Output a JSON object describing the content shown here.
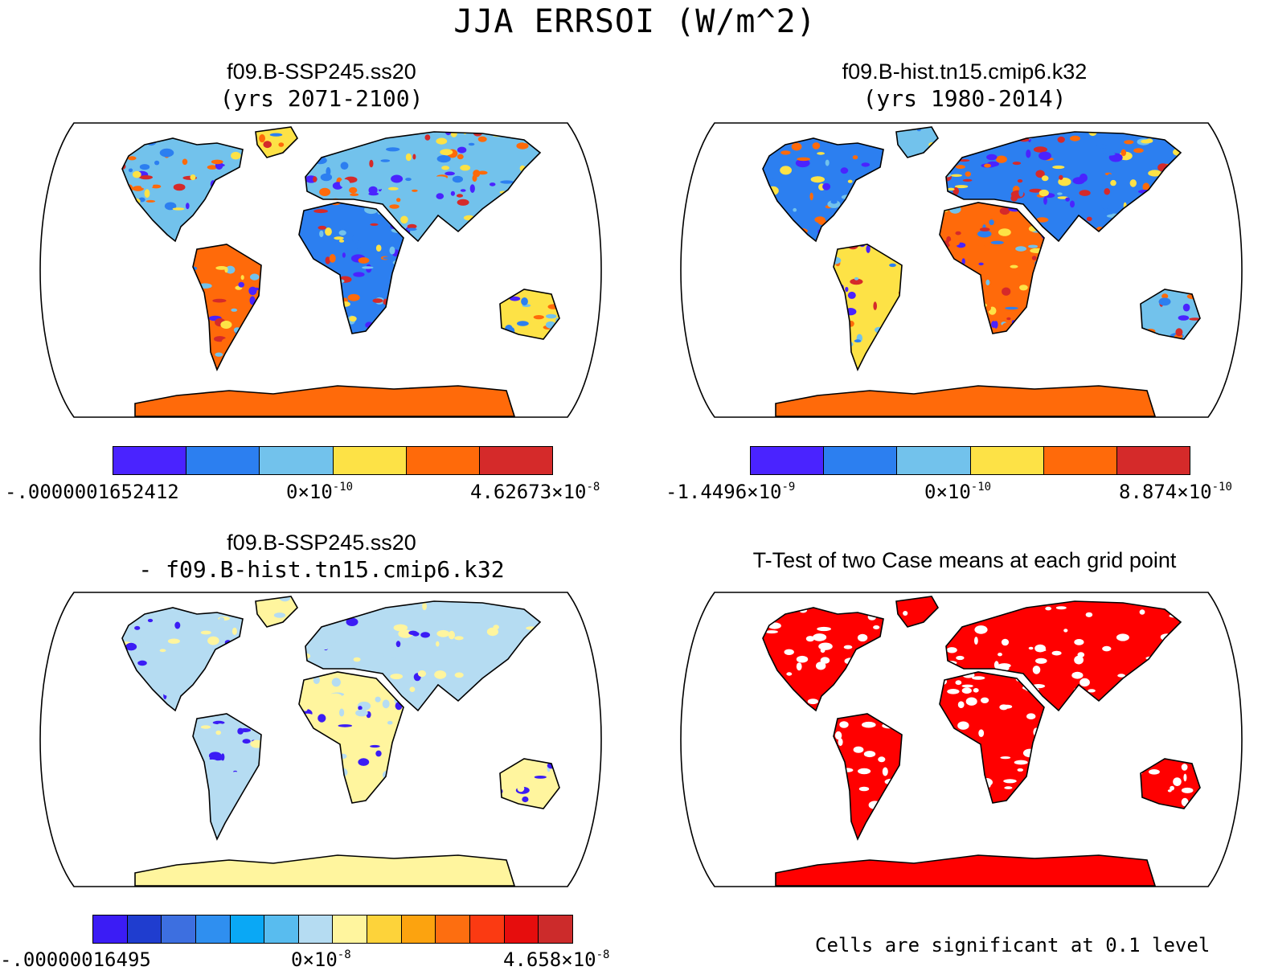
{
  "title": "JJA ERRSOI (W/m^2)",
  "panels": [
    {
      "title": "f09.B-SSP245.ss20",
      "subtitle": "(yrs 2071-2100)",
      "colors": [
        "#4a23ff",
        "#2c7ff0",
        "#72c2ec",
        "#fde246",
        "#ff6a0a",
        "#d52a2a"
      ],
      "labels": {
        "min_base": "-.0000001652412",
        "min_exp": "",
        "mid_base": "0×10",
        "mid_exp": "-10",
        "max_base": "4.62673×10",
        "max_exp": "-8"
      }
    },
    {
      "title": "f09.B-hist.tn15.cmip6.k32",
      "subtitle": "(yrs 1980-2014)",
      "colors": [
        "#4a23ff",
        "#2c7ff0",
        "#72c2ec",
        "#fde246",
        "#ff6a0a",
        "#d52a2a"
      ],
      "labels": {
        "min_base": "-1.4496×10",
        "min_exp": "-9",
        "mid_base": "0×10",
        "mid_exp": "-10",
        "max_base": "8.874×10",
        "max_exp": "-10"
      }
    },
    {
      "title": "f09.B-SSP245.ss20",
      "subtitle": "- f09.B-hist.tn15.cmip6.k32",
      "colors": [
        "#3b1cf5",
        "#1f3dcf",
        "#3d6fe0",
        "#2f8ff0",
        "#0aa8f5",
        "#58bcef",
        "#b5dcf2",
        "#fff59e",
        "#fdd33a",
        "#fca30f",
        "#fd6e10",
        "#fb3a12",
        "#e60d0d",
        "#cc2b2b"
      ],
      "labels": {
        "min_base": "-.00000016495",
        "min_exp": "",
        "mid_base": "0×10",
        "mid_exp": "-8",
        "max_base": "4.658×10",
        "max_exp": "-8"
      }
    },
    {
      "title": "T-Test of two Case means at each grid point",
      "subtitle": "",
      "note": "Cells are significant at 0.1 level"
    }
  ]
}
